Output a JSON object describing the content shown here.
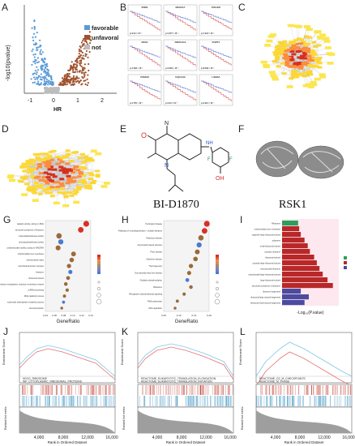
{
  "panels": {
    "A": {
      "label": "A",
      "ylabel": "-log10(pvalue)",
      "xlabel": "HR",
      "xticks": [
        "-1",
        "0",
        "1",
        "2"
      ],
      "yticks": [
        "0",
        "5",
        "10",
        "15"
      ],
      "legend": [
        "favorable",
        "unfavorable",
        "not"
      ],
      "colors": {
        "favorable": "#5b9bd5",
        "unfavorable": "#a0522d",
        "not": "#bdbdbd"
      }
    },
    "B": {
      "label": "B",
      "genes": [
        "PNN1",
        "NDUFA7",
        "POLR2I",
        "DDX1",
        "NDUFA13",
        "PHPT1",
        "PSMA8",
        "UQCC3A",
        "LSM4A"
      ],
      "pvalues": [
        "p=2.24 × 10⁻⁷",
        "p=1.677 × 10⁻⁵",
        "p=1.244 × 10⁻⁵",
        "p=1.483 × 10⁻⁵",
        "p=2.063 × 10⁻⁵",
        "p=8.548 × 10⁻⁵",
        "p=1.755 × 10⁻⁵",
        "p=2.24 × 10⁻⁵",
        "p=2.012 × 10⁻⁵"
      ]
    },
    "C": {
      "label": "C"
    },
    "D": {
      "label": "D"
    },
    "E": {
      "label": "E",
      "compound": "BI-D1870"
    },
    "F": {
      "label": "F",
      "protein": "RSK1"
    },
    "G": {
      "label": "G",
      "xlabel": "GeneRatio",
      "xticks": [
        "0.04",
        "0.06",
        "0.08",
        "0.10",
        "0.12",
        "0.14"
      ],
      "terms": [
        "catalytic activity, acting on RNA",
        "structural constituent of ribosome",
        "nucleotidyltransferase activity",
        "aminoacyltransferase activity",
        "oxidoreductase activity, acting on NAD(P)H",
        "mitochondrial inner membrane",
        "mitochondrial matrix",
        "mitochondrial protein complex",
        "ribosome",
        "ribosomal subunit",
        "nuclear outer membrane-endoplasmic reticulum membrane network",
        "ncRNA processing",
        "RNA catabolic process",
        "nucleoside triphosphate metabolic process",
        "viral transcription"
      ]
    },
    "H": {
      "label": "H",
      "xlabel": "GeneRatio",
      "xticks": [
        "0.05",
        "0.10",
        "0.15",
        "0.20"
      ],
      "terms": [
        "Huntington disease",
        "Pathways of neurodegeneration - multiple diseases",
        "Parkinson disease",
        "Amyotrophic lateral sclerosis",
        "Prion disease",
        "Alzheimer disease",
        "Thermogenesis",
        "Non-alcoholic fatty liver disease",
        "Oxidative phosphorylation",
        "Ribosome",
        "Retrograde endocannabinoid signaling",
        "RNA polymerase",
        "DNA replication"
      ]
    },
    "I": {
      "label": "I",
      "xlabel": "-Log₁₀(P.value)",
      "terms": [
        "Ribosome",
        "mitochondrial inner membrane",
        "organelle large ribosomal subunit",
        "polysome",
        "small ribosomal subunit",
        "cytosolic ribosome",
        "ribosomal subunit",
        "cytosolic large ribosomal subunit",
        "mitochondrial ribosome",
        "mitochondrial large ribosomal subunit",
        "large ribosomal subunit",
        "structural constituent of ribosome",
        "ribosome biogenesis",
        "ribosomal large subunit biogenesis",
        "ribosomal small subunit biogenesis"
      ]
    },
    "J": {
      "label": "J",
      "ylabel_top": "Enrichment Score",
      "ylabel_bottom": "Ranked list metric",
      "xlabel": "Rank in Ordered Dataset",
      "xticks": [
        "4,000",
        "8,000",
        "12,000",
        "16,000"
      ],
      "legend": [
        "KEGG_RIBOSOME",
        "WP_CYTOPLASMIC_RIBOSOMAL_PROTEINS"
      ]
    },
    "K": {
      "label": "K",
      "ylabel_top": "Enrichment Score",
      "ylabel_bottom": "Ranked list metric",
      "xlabel": "Rank in Ordered Dataset",
      "xticks": [
        "4,000",
        "8,000",
        "12,000",
        "16,000"
      ],
      "legend": [
        "REACTOME_EUKARYOTIC_TRANSLATION_ELONGATION",
        "REACTOME_EUKARYOTIC_TRANSLATION_INITIATION"
      ]
    },
    "L": {
      "label": "L",
      "ylabel_top": "Enrichment Score",
      "ylabel_bottom": "Ranked list metric",
      "xlabel": "Rank in Ordered Dataset",
      "xticks": [
        "4,000",
        "8,000",
        "12,000",
        "16,000"
      ],
      "legend": [
        "REACTOME_G2_M_CHECKPOINTS",
        "REACTOME_M_PHASE"
      ]
    }
  }
}
